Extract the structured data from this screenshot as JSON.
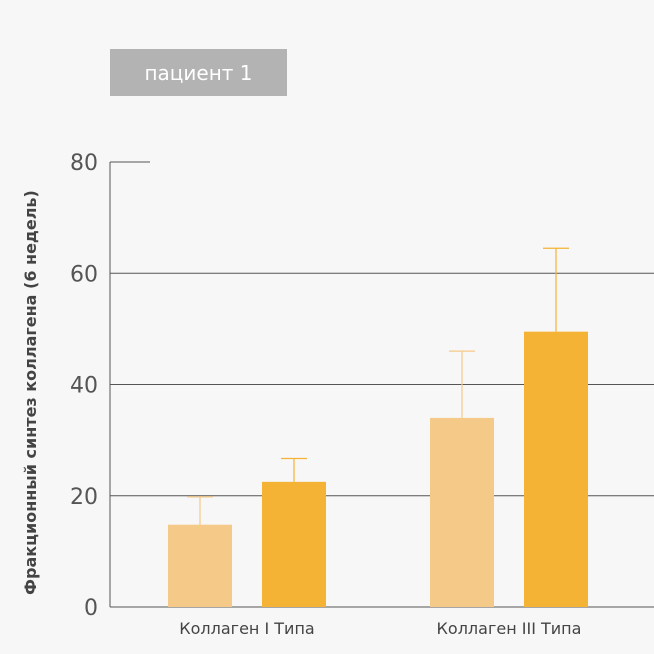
{
  "chart_data": {
    "type": "bar",
    "legend": {
      "label": "пациент 1",
      "color": "#b3b3b3",
      "placement": "top-left"
    },
    "ylabel": "Фракционный синтез коллагена (6 недель)",
    "xlabel": "",
    "ylim": [
      0,
      80
    ],
    "yticks": [
      0,
      20,
      40,
      60,
      80
    ],
    "grid": true,
    "categories": [
      "Коллаген I Типа",
      "Коллаген III Типа"
    ],
    "series": [
      {
        "color": "#f5c987",
        "values": [
          14.8,
          34.0
        ],
        "error": [
          5.0,
          12.0
        ]
      },
      {
        "color": "#f5b335",
        "values": [
          22.5,
          49.5
        ],
        "error": [
          4.2,
          15.0
        ]
      }
    ]
  }
}
